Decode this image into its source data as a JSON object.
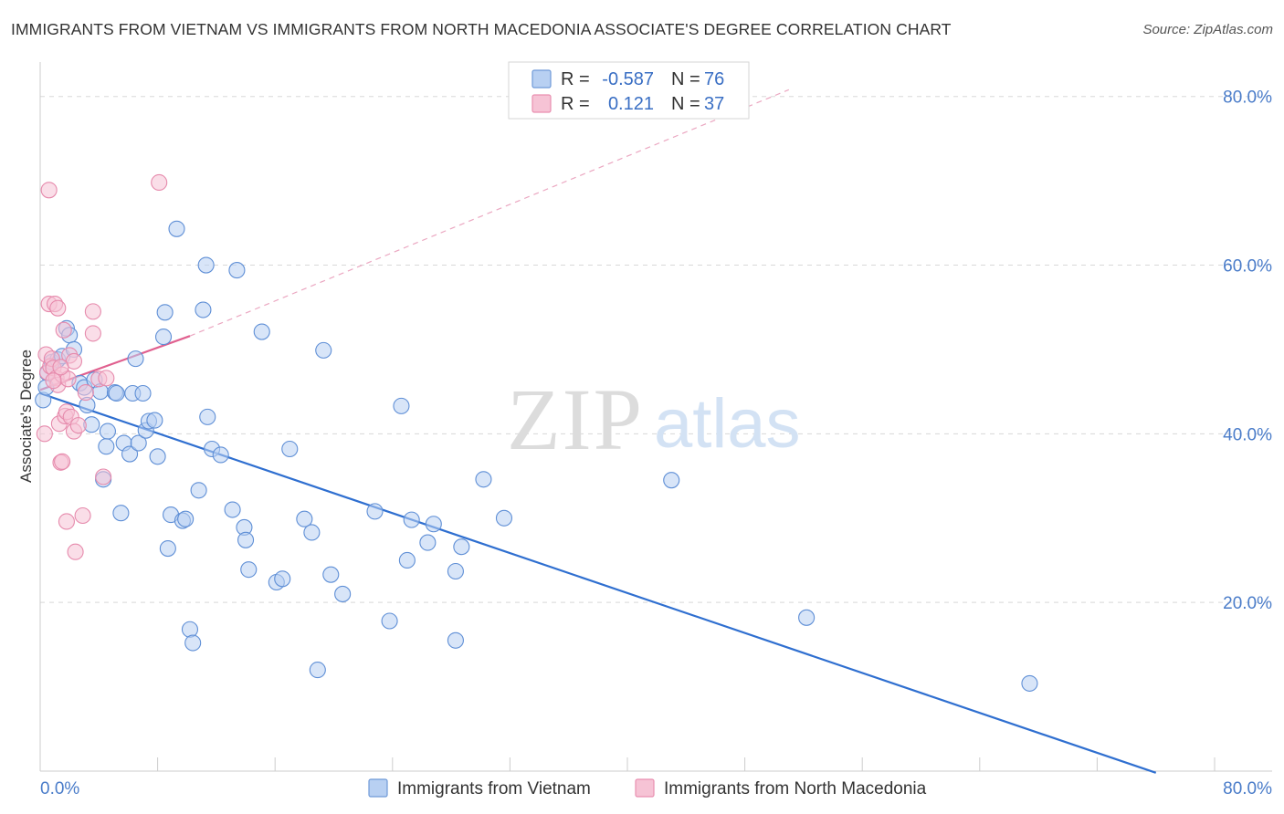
{
  "title": "IMMIGRANTS FROM VIETNAM VS IMMIGRANTS FROM NORTH MACEDONIA ASSOCIATE'S DEGREE CORRELATION CHART",
  "source": "Source: ZipAtlas.com",
  "watermark": {
    "zip": "ZIP",
    "atlas": "atlas"
  },
  "colors": {
    "blue": "#4a7cc9",
    "blue_fill": "#b8d0f2",
    "blue_line": "#2f6fd0",
    "pink": "#e87fa6",
    "pink_fill": "#f6c3d5",
    "pink_line": "#e0608f",
    "grid": "#d8d8d8"
  },
  "legend": {
    "rows": [
      {
        "r_label": "R =",
        "r_value": "-0.587",
        "n_label": "N =",
        "n_value": "76"
      },
      {
        "r_label": "R =",
        "r_value": "0.121",
        "n_label": "N =",
        "n_value": "37"
      }
    ]
  },
  "bottom_legend": [
    "Immigrants from Vietnam",
    "Immigrants from North Macedonia"
  ],
  "chart_data": {
    "type": "scatter",
    "ylabel": "Associate's Degree",
    "xlim": [
      0,
      80
    ],
    "ylim": [
      0,
      83
    ],
    "x_tick_labels": [
      {
        "value": 0,
        "label": "0.0%"
      },
      {
        "value": 80,
        "label": "80.0%"
      }
    ],
    "y_tick_labels": [
      {
        "value": 20,
        "label": "20.0%"
      },
      {
        "value": 40,
        "label": "40.0%"
      },
      {
        "value": 60,
        "label": "60.0%"
      },
      {
        "value": 80,
        "label": "80.0%"
      }
    ],
    "x_minor_ticks": [
      8,
      16,
      24,
      32,
      40,
      48,
      56,
      64,
      72,
      80
    ],
    "series": [
      {
        "name": "Immigrants from Vietnam",
        "color": "blue",
        "trend": {
          "x0": 0,
          "y0": 44.8,
          "x1": 76,
          "y1": -0.2,
          "style": "solid"
        },
        "points": [
          [
            0.2,
            44.0
          ],
          [
            0.5,
            47.2
          ],
          [
            0.8,
            48.5
          ],
          [
            1.2,
            48.8
          ],
          [
            1.5,
            49.2
          ],
          [
            1.8,
            52.5
          ],
          [
            2.0,
            51.7
          ],
          [
            2.3,
            50.0
          ],
          [
            2.7,
            46.0
          ],
          [
            3.0,
            45.5
          ],
          [
            3.2,
            43.4
          ],
          [
            3.5,
            41.1
          ],
          [
            3.7,
            46.4
          ],
          [
            4.1,
            45.0
          ],
          [
            4.3,
            34.6
          ],
          [
            4.5,
            38.5
          ],
          [
            4.6,
            40.3
          ],
          [
            5.1,
            44.9
          ],
          [
            5.2,
            44.8
          ],
          [
            5.5,
            30.6
          ],
          [
            5.7,
            38.9
          ],
          [
            6.1,
            37.6
          ],
          [
            6.3,
            44.8
          ],
          [
            6.5,
            48.9
          ],
          [
            6.7,
            38.9
          ],
          [
            7.0,
            44.8
          ],
          [
            7.2,
            40.4
          ],
          [
            7.4,
            41.5
          ],
          [
            7.8,
            41.6
          ],
          [
            8.0,
            37.3
          ],
          [
            8.4,
            51.5
          ],
          [
            8.5,
            54.4
          ],
          [
            8.7,
            26.4
          ],
          [
            8.9,
            30.4
          ],
          [
            9.3,
            64.3
          ],
          [
            9.7,
            29.7
          ],
          [
            9.9,
            29.9
          ],
          [
            10.2,
            16.8
          ],
          [
            10.4,
            15.2
          ],
          [
            10.8,
            33.3
          ],
          [
            11.1,
            54.7
          ],
          [
            11.3,
            60.0
          ],
          [
            11.4,
            42.0
          ],
          [
            11.7,
            38.2
          ],
          [
            12.3,
            37.5
          ],
          [
            13.1,
            31.0
          ],
          [
            13.4,
            59.4
          ],
          [
            13.9,
            28.9
          ],
          [
            14.0,
            27.4
          ],
          [
            14.2,
            23.9
          ],
          [
            15.1,
            52.1
          ],
          [
            16.1,
            22.4
          ],
          [
            16.5,
            22.8
          ],
          [
            17.0,
            38.2
          ],
          [
            18.0,
            29.9
          ],
          [
            18.5,
            28.3
          ],
          [
            18.9,
            12.0
          ],
          [
            19.3,
            49.9
          ],
          [
            19.8,
            23.3
          ],
          [
            20.6,
            21.0
          ],
          [
            22.8,
            30.8
          ],
          [
            23.8,
            17.8
          ],
          [
            24.6,
            43.3
          ],
          [
            25.0,
            25.0
          ],
          [
            25.3,
            29.8
          ],
          [
            26.4,
            27.1
          ],
          [
            26.8,
            29.3
          ],
          [
            28.3,
            23.7
          ],
          [
            28.3,
            15.5
          ],
          [
            28.7,
            26.6
          ],
          [
            30.2,
            34.6
          ],
          [
            31.6,
            30.0
          ],
          [
            43.0,
            34.5
          ],
          [
            52.2,
            18.2
          ],
          [
            67.4,
            10.4
          ],
          [
            0.4,
            45.5
          ]
        ]
      },
      {
        "name": "Immigrants from North Macedonia",
        "color": "pink",
        "trend": {
          "x0": 0,
          "y0": 45.2,
          "x1": 10.2,
          "y1": 51.6,
          "style": "solid",
          "ext_x1": 51.0,
          "ext_y1": 80.8
        },
        "points": [
          [
            0.3,
            40.0
          ],
          [
            0.4,
            49.4
          ],
          [
            0.5,
            47.3
          ],
          [
            0.6,
            55.4
          ],
          [
            0.6,
            68.9
          ],
          [
            0.7,
            48.0
          ],
          [
            0.8,
            48.9
          ],
          [
            0.9,
            47.8
          ],
          [
            1.0,
            55.4
          ],
          [
            1.1,
            46.6
          ],
          [
            1.2,
            45.8
          ],
          [
            1.2,
            54.9
          ],
          [
            1.3,
            41.2
          ],
          [
            1.4,
            36.6
          ],
          [
            1.5,
            36.7
          ],
          [
            1.5,
            47.0
          ],
          [
            1.6,
            52.3
          ],
          [
            1.7,
            42.1
          ],
          [
            1.8,
            42.6
          ],
          [
            1.8,
            29.6
          ],
          [
            1.9,
            46.5
          ],
          [
            2.0,
            49.3
          ],
          [
            2.1,
            42.0
          ],
          [
            2.3,
            48.6
          ],
          [
            2.3,
            40.3
          ],
          [
            2.4,
            26.0
          ],
          [
            2.6,
            41.0
          ],
          [
            2.9,
            30.3
          ],
          [
            3.1,
            44.9
          ],
          [
            3.6,
            54.5
          ],
          [
            3.6,
            51.9
          ],
          [
            4.0,
            46.5
          ],
          [
            4.3,
            34.9
          ],
          [
            4.5,
            46.6
          ],
          [
            8.1,
            69.8
          ],
          [
            0.9,
            46.3
          ],
          [
            1.4,
            47.9
          ]
        ]
      }
    ]
  }
}
